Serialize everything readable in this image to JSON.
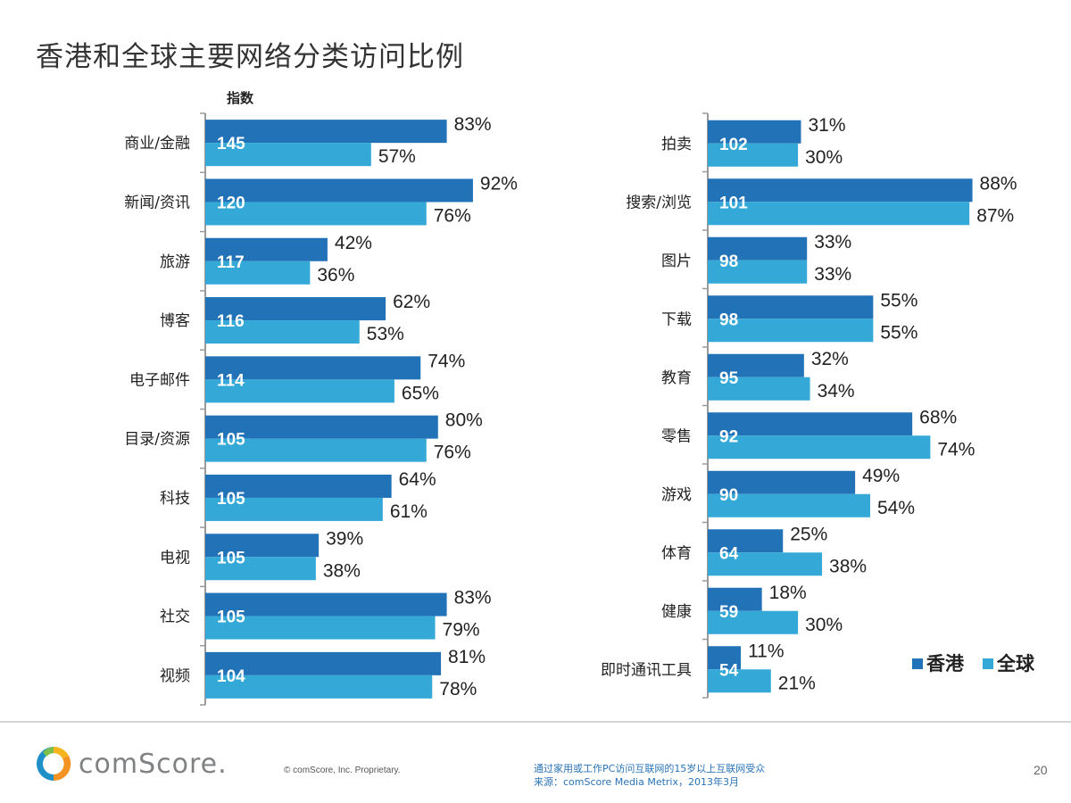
{
  "slide": {
    "title": "香港和全球主要网络分类访问比例",
    "index_label": "指数",
    "copyright": "© comScore, Inc.   Proprietary.",
    "note_line1": "通过家用或工作PC访问互联网的15岁以上互联网受众",
    "note_line2": "来源：comScore Media Metrix，2013年3月",
    "page_number": "20",
    "logo_text": "comScore."
  },
  "colors": {
    "hk": "#2272b8",
    "global": "#34a9d8",
    "axis": "#9a9a9a",
    "text": "#222222"
  },
  "chart_data": [
    {
      "type": "bar",
      "orientation": "horizontal",
      "title": "",
      "xlim": [
        0,
        100
      ],
      "index_label": "指数",
      "categories": [
        "商业/金融",
        "新闻/资讯",
        "旅游",
        "博客",
        "电子邮件",
        "目录/资源",
        "科技",
        "电视",
        "社交",
        "视频"
      ],
      "index": [
        "145",
        "120",
        "117",
        "116",
        "114",
        "105",
        "105",
        "105",
        "105",
        "104"
      ],
      "series": [
        {
          "name": "香港",
          "values": [
            83,
            92,
            42,
            62,
            74,
            80,
            64,
            39,
            83,
            81
          ],
          "labels": [
            "83%",
            "92%",
            "42%",
            "62%",
            "74%",
            "80%",
            "64%",
            "39%",
            "83%",
            "81%"
          ]
        },
        {
          "name": "全球",
          "values": [
            57,
            76,
            36,
            53,
            65,
            76,
            61,
            38,
            79,
            78
          ],
          "labels": [
            "57%",
            "76%",
            "36%",
            "53%",
            "65%",
            "76%",
            "61%",
            "38%",
            "79%",
            "78%"
          ]
        }
      ]
    },
    {
      "type": "bar",
      "orientation": "horizontal",
      "title": "",
      "xlim": [
        0,
        100
      ],
      "categories": [
        "拍卖",
        "搜索/浏览",
        "图片",
        "下载",
        "教育",
        "零售",
        "游戏",
        "体育",
        "健康",
        "即时通讯工具"
      ],
      "index": [
        "102",
        "101",
        "98",
        "98",
        "95",
        "92",
        "90",
        "64",
        "59",
        "54"
      ],
      "series": [
        {
          "name": "香港",
          "values": [
            31,
            88,
            33,
            55,
            32,
            68,
            49,
            25,
            18,
            11
          ],
          "labels": [
            "31%",
            "88%",
            "33%",
            "55%",
            "32%",
            "68%",
            "49%",
            "25%",
            "18%",
            "11%"
          ]
        },
        {
          "name": "全球",
          "values": [
            30,
            87,
            33,
            55,
            34,
            74,
            54,
            38,
            30,
            21
          ],
          "labels": [
            "30%",
            "87%",
            "33%",
            "55%",
            "34%",
            "74%",
            "54%",
            "38%",
            "30%",
            "21%"
          ]
        }
      ],
      "legend": [
        "香港",
        "全球"
      ],
      "legend_position": "bottom-right"
    }
  ]
}
